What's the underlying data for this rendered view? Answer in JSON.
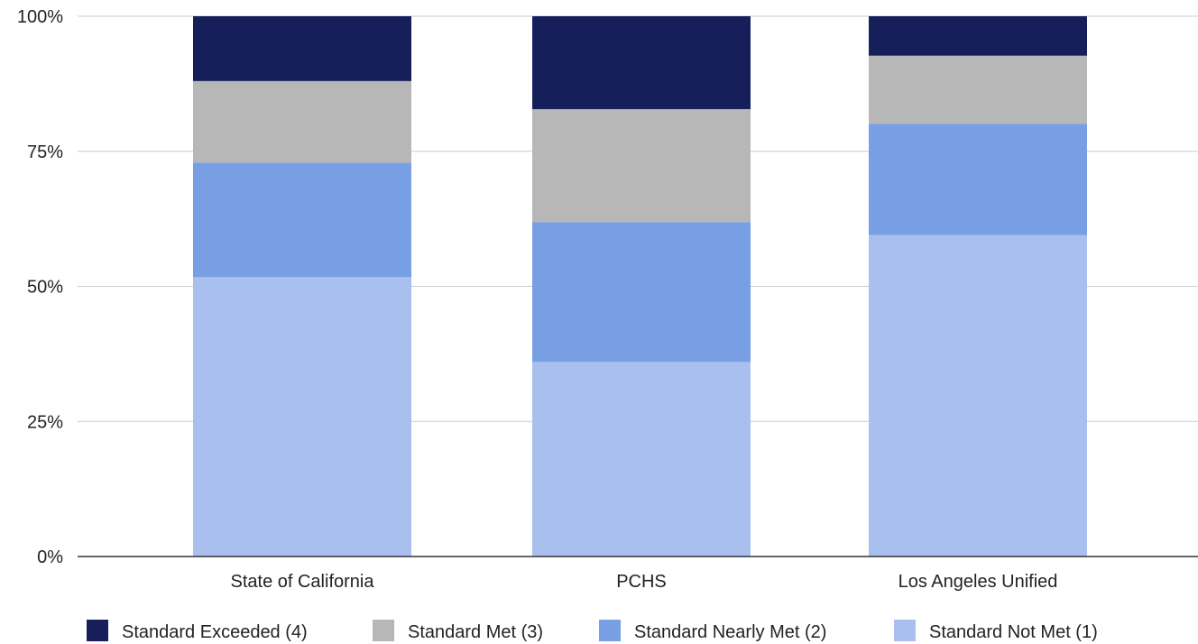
{
  "chart_data": {
    "type": "bar",
    "stacked": true,
    "percent": true,
    "categories": [
      "State of California",
      "PCHS",
      "Los Angeles Unified"
    ],
    "series": [
      {
        "name": "Standard Not Met (1)",
        "color": "#a9c0ee",
        "values": [
          51.7,
          36.0,
          59.5
        ]
      },
      {
        "name": "Standard Nearly Met (2)",
        "color": "#789fe3",
        "values": [
          21.2,
          25.9,
          20.6
        ]
      },
      {
        "name": "Standard Met (3)",
        "color": "#b7b7b7",
        "values": [
          15.1,
          20.9,
          12.6
        ]
      },
      {
        "name": "Standard Exceeded (4)",
        "color": "#161f5a",
        "values": [
          12.0,
          17.2,
          7.3
        ]
      }
    ],
    "legend_order": [
      "Standard Exceeded (4)",
      "Standard Met (3)",
      "Standard Nearly Met (2)",
      "Standard Not Met (1)"
    ],
    "y_ticks": [
      "0%",
      "25%",
      "50%",
      "75%",
      "100%"
    ],
    "ylim": [
      0,
      100
    ],
    "grid": true,
    "legend_position": "bottom"
  }
}
